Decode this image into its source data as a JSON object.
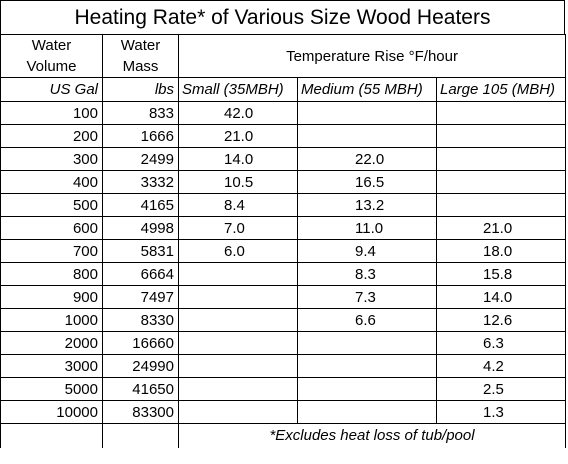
{
  "title": "Heating Rate* of Various Size Wood Heaters",
  "headers": {
    "water_volume": [
      "Water",
      "Volume"
    ],
    "water_mass": [
      "Water",
      "Mass"
    ],
    "temp_rise": "Temperature Rise °F/hour",
    "units": [
      "US Gal",
      "lbs",
      "Small (35MBH)",
      "Medium (55 MBH)",
      "Large 105 (MBH)"
    ]
  },
  "rows": [
    {
      "gal": "100",
      "lbs": "833",
      "small": "42.0",
      "medium": "",
      "large": ""
    },
    {
      "gal": "200",
      "lbs": "1666",
      "small": "21.0",
      "medium": "",
      "large": ""
    },
    {
      "gal": "300",
      "lbs": "2499",
      "small": "14.0",
      "medium": "22.0",
      "large": ""
    },
    {
      "gal": "400",
      "lbs": "3332",
      "small": "10.5",
      "medium": "16.5",
      "large": ""
    },
    {
      "gal": "500",
      "lbs": "4165",
      "small": "8.4",
      "medium": "13.2",
      "large": ""
    },
    {
      "gal": "600",
      "lbs": "4998",
      "small": "7.0",
      "medium": "11.0",
      "large": "21.0"
    },
    {
      "gal": "700",
      "lbs": "5831",
      "small": "6.0",
      "medium": "9.4",
      "large": "18.0"
    },
    {
      "gal": "800",
      "lbs": "6664",
      "small": "",
      "medium": "8.3",
      "large": "15.8"
    },
    {
      "gal": "900",
      "lbs": "7497",
      "small": "",
      "medium": "7.3",
      "large": "14.0"
    },
    {
      "gal": "1000",
      "lbs": "8330",
      "small": "",
      "medium": "6.6",
      "large": "12.6"
    },
    {
      "gal": "2000",
      "lbs": "16660",
      "small": "",
      "medium": "",
      "large": "6.3"
    },
    {
      "gal": "3000",
      "lbs": "24990",
      "small": "",
      "medium": "",
      "large": "4.2"
    },
    {
      "gal": "5000",
      "lbs": "41650",
      "small": "",
      "medium": "",
      "large": "2.5"
    },
    {
      "gal": "10000",
      "lbs": "83300",
      "small": "",
      "medium": "",
      "large": "1.3"
    }
  ],
  "footnote": "*Excludes heat loss of tub/pool"
}
